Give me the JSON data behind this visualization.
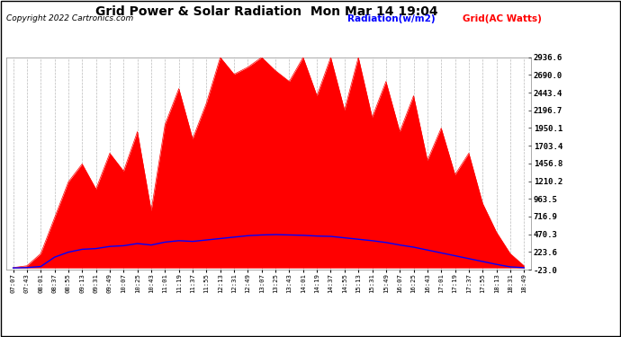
{
  "title": "Grid Power & Solar Radiation  Mon Mar 14 19:04",
  "copyright": "Copyright 2022 Cartronics.com",
  "legend_radiation": "Radiation(w/m2)",
  "legend_grid": "Grid(AC Watts)",
  "ylabel_right_values": [
    2936.6,
    2690.0,
    2443.4,
    2196.7,
    1950.1,
    1703.4,
    1456.8,
    1210.2,
    963.5,
    716.9,
    470.3,
    223.6,
    -23.0
  ],
  "ymin": -23.0,
  "ymax": 2936.6,
  "bg_color": "#ffffff",
  "plot_bg_color": "#ffffff",
  "grid_color": "#bbbbbb",
  "radiation_fill_color": "#ff0000",
  "radiation_line_color": "#ff0000",
  "grid_line_color": "#0000ff",
  "x_tick_labels": [
    "07:07",
    "07:43",
    "08:01",
    "08:37",
    "08:55",
    "09:13",
    "09:31",
    "09:49",
    "10:07",
    "10:25",
    "10:43",
    "11:01",
    "11:19",
    "11:37",
    "11:55",
    "12:13",
    "12:31",
    "12:49",
    "13:07",
    "13:25",
    "13:43",
    "14:01",
    "14:19",
    "14:37",
    "14:55",
    "15:13",
    "15:31",
    "15:49",
    "16:07",
    "16:25",
    "16:43",
    "17:01",
    "17:19",
    "17:37",
    "17:55",
    "18:13",
    "18:31",
    "18:49"
  ],
  "num_points": 38,
  "radiation": [
    5,
    30,
    200,
    700,
    1200,
    1450,
    1100,
    1600,
    1350,
    1900,
    800,
    2000,
    2500,
    1800,
    2300,
    2936,
    2700,
    2800,
    2936,
    2750,
    2600,
    2936,
    2400,
    2936,
    2200,
    2936,
    2100,
    2600,
    1900,
    2400,
    1500,
    1950,
    1300,
    1600,
    900,
    500,
    200,
    30
  ],
  "grid_power": [
    0,
    5,
    20,
    150,
    220,
    260,
    270,
    300,
    310,
    340,
    320,
    360,
    380,
    370,
    390,
    410,
    430,
    450,
    460,
    465,
    460,
    455,
    445,
    440,
    420,
    400,
    380,
    355,
    320,
    290,
    250,
    210,
    170,
    130,
    90,
    50,
    15,
    3
  ]
}
